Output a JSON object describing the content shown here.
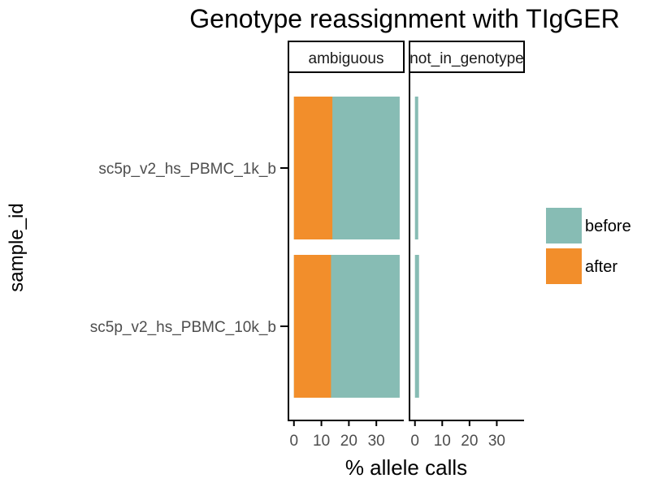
{
  "chart_data": {
    "type": "bar",
    "orientation": "horizontal",
    "title": "Genotype reassignment with TIgGER",
    "xlabel": "% allele calls",
    "ylabel": "sample_id",
    "categories": [
      "sc5p_v2_hs_PBMC_1k_b",
      "sc5p_v2_hs_PBMC_10k_b"
    ],
    "facets": [
      {
        "label": "ambiguous",
        "series": [
          {
            "name": "before",
            "values": [
              38.5,
              38.5
            ]
          },
          {
            "name": "after",
            "values": [
              14.0,
              13.5
            ]
          }
        ]
      },
      {
        "label": "not_in_genotype",
        "series": [
          {
            "name": "before",
            "values": [
              1.2,
              1.5
            ]
          },
          {
            "name": "after",
            "values": [
              0,
              0
            ]
          }
        ]
      }
    ],
    "xlim": [
      -2,
      40
    ],
    "xticks": [
      "0",
      "10",
      "20",
      "30"
    ],
    "legend": {
      "position": "right",
      "entries": [
        "before",
        "after"
      ]
    },
    "colors": {
      "before": "#87bcb4",
      "after": "#f28e2b"
    }
  }
}
